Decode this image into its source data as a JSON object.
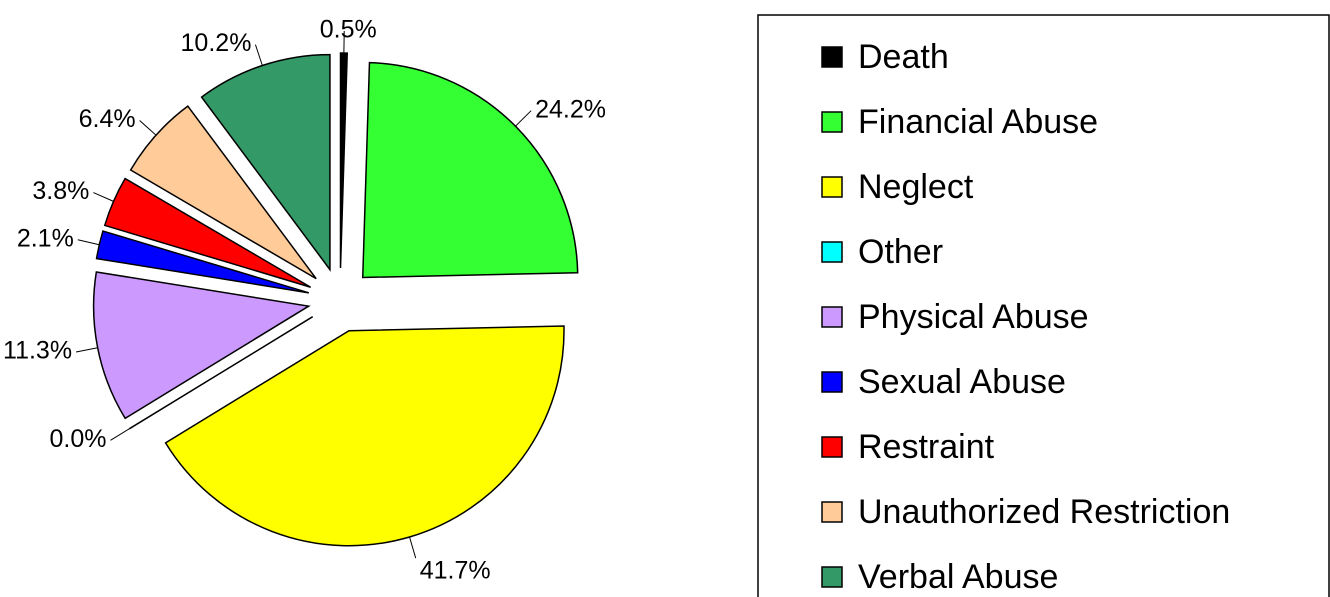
{
  "chart_data": {
    "type": "pie",
    "categories": [
      "Death",
      "Financial Abuse",
      "Neglect",
      "Other",
      "Physical Abuse",
      "Sexual Abuse",
      "Restraint",
      "Unauthorized Restriction",
      "Verbal Abuse"
    ],
    "values": [
      0.5,
      24.2,
      41.7,
      0.0,
      11.3,
      2.1,
      3.8,
      6.4,
      10.2
    ],
    "value_labels": [
      "0.5%",
      "24.2%",
      "41.7%",
      "0.0%",
      "11.3%",
      "2.1%",
      "3.8%",
      "6.4%",
      "10.2%"
    ],
    "colors": [
      "#000000",
      "#33ff33",
      "#ffff00",
      "#00ffff",
      "#cc99ff",
      "#0000ff",
      "#ff0000",
      "#ffcc99",
      "#339966"
    ],
    "legend": "right"
  }
}
